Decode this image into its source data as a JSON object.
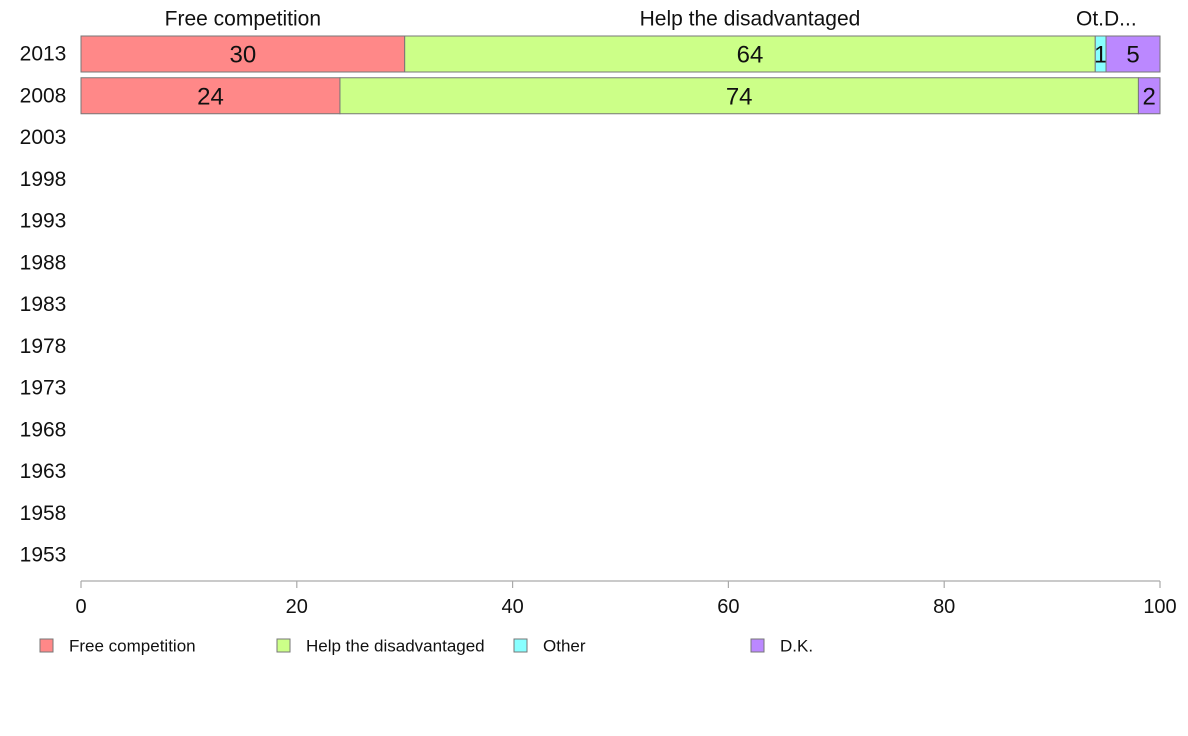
{
  "chart_data": {
    "type": "bar",
    "orientation": "horizontal",
    "stacked": true,
    "categories": [
      "2013",
      "2008",
      "2003",
      "1998",
      "1993",
      "1988",
      "1983",
      "1978",
      "1973",
      "1968",
      "1963",
      "1958",
      "1953"
    ],
    "series": [
      {
        "name": "Free competition",
        "color": "#ff8888",
        "values": [
          30,
          24,
          null,
          null,
          null,
          null,
          null,
          null,
          null,
          null,
          null,
          null,
          null
        ]
      },
      {
        "name": "Help the disadvantaged",
        "color": "#ccff88",
        "values": [
          64,
          74,
          null,
          null,
          null,
          null,
          null,
          null,
          null,
          null,
          null,
          null,
          null
        ]
      },
      {
        "name": "Other",
        "color": "#88ffff",
        "values": [
          1,
          0,
          null,
          null,
          null,
          null,
          null,
          null,
          null,
          null,
          null,
          null,
          null
        ]
      },
      {
        "name": "D.K.",
        "color": "#bb88ff",
        "values": [
          5,
          2,
          null,
          null,
          null,
          null,
          null,
          null,
          null,
          null,
          null,
          null,
          null
        ]
      }
    ],
    "top_labels": [
      "Free competition",
      "Help the disadvantaged",
      "Ot.",
      "D..."
    ],
    "xlim": [
      0,
      100
    ],
    "xticks": [
      0,
      20,
      40,
      60,
      80,
      100
    ],
    "legend_position": "bottom",
    "grid": false
  }
}
